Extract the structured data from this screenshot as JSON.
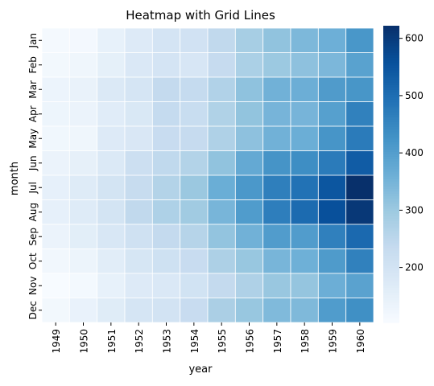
{
  "chart_data": {
    "type": "heatmap",
    "title": "Heatmap with Grid Lines",
    "xlabel": "year",
    "ylabel": "month",
    "x": [
      "1949",
      "1950",
      "1951",
      "1952",
      "1953",
      "1954",
      "1955",
      "1956",
      "1957",
      "1958",
      "1959",
      "1960"
    ],
    "y": [
      "Jan",
      "Feb",
      "Mar",
      "Apr",
      "May",
      "Jun",
      "Jul",
      "Aug",
      "Sep",
      "Oct",
      "Nov",
      "Dec"
    ],
    "values": [
      [
        112,
        115,
        145,
        171,
        196,
        204,
        242,
        284,
        315,
        340,
        360,
        417
      ],
      [
        118,
        126,
        150,
        180,
        196,
        188,
        233,
        277,
        301,
        318,
        342,
        391
      ],
      [
        132,
        141,
        178,
        193,
        236,
        235,
        267,
        317,
        356,
        362,
        406,
        419
      ],
      [
        129,
        135,
        163,
        181,
        235,
        227,
        269,
        313,
        348,
        348,
        396,
        461
      ],
      [
        121,
        125,
        172,
        183,
        229,
        234,
        270,
        318,
        355,
        363,
        420,
        472
      ],
      [
        135,
        149,
        178,
        218,
        243,
        264,
        315,
        374,
        422,
        435,
        472,
        535
      ],
      [
        148,
        170,
        199,
        230,
        264,
        302,
        364,
        413,
        465,
        491,
        548,
        622
      ],
      [
        148,
        170,
        199,
        242,
        272,
        293,
        347,
        405,
        467,
        505,
        559,
        606
      ],
      [
        136,
        158,
        184,
        209,
        237,
        259,
        312,
        355,
        404,
        404,
        463,
        508
      ],
      [
        119,
        133,
        162,
        191,
        211,
        229,
        274,
        306,
        347,
        359,
        407,
        461
      ],
      [
        104,
        114,
        146,
        172,
        180,
        203,
        237,
        271,
        305,
        310,
        362,
        390
      ],
      [
        118,
        140,
        166,
        194,
        201,
        229,
        278,
        306,
        336,
        337,
        405,
        432
      ]
    ],
    "zlim": [
      104,
      622
    ],
    "colormap": "Blues",
    "colorbar_ticks": [
      200,
      300,
      400,
      500,
      600
    ],
    "grid": true,
    "grid_color": "#ffffff"
  }
}
